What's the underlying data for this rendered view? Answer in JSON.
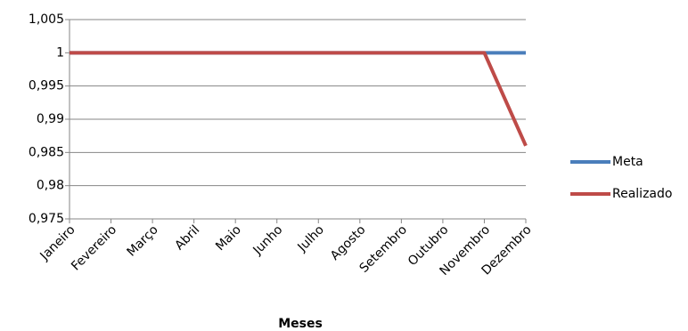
{
  "chart_data": {
    "type": "line",
    "x_label": "Meses",
    "categories": [
      "Janeiro",
      "Fevereiro",
      "Março",
      "Abril",
      "Maio",
      "Junho",
      "Julho",
      "Agosto",
      "Setembro",
      "Outubro",
      "Novembro",
      "Dezembro"
    ],
    "series": [
      {
        "name": "Meta",
        "color": "#4a7ebb",
        "values": [
          1,
          1,
          1,
          1,
          1,
          1,
          1,
          1,
          1,
          1,
          1,
          1
        ]
      },
      {
        "name": "Realizado",
        "color": "#be4b48",
        "values": [
          1,
          1,
          1,
          1,
          1,
          1,
          1,
          1,
          1,
          1,
          1,
          0.986
        ]
      }
    ],
    "ylim": [
      0.975,
      1.005
    ],
    "yticks": [
      {
        "value": 0.975,
        "label": "0,975"
      },
      {
        "value": 0.98,
        "label": "0,98"
      },
      {
        "value": 0.985,
        "label": "0,985"
      },
      {
        "value": 0.99,
        "label": "0,99"
      },
      {
        "value": 0.995,
        "label": "0,995"
      },
      1,
      {
        "value": 1.005,
        "label": "1,005"
      }
    ],
    "grid": true,
    "legend": "right"
  }
}
